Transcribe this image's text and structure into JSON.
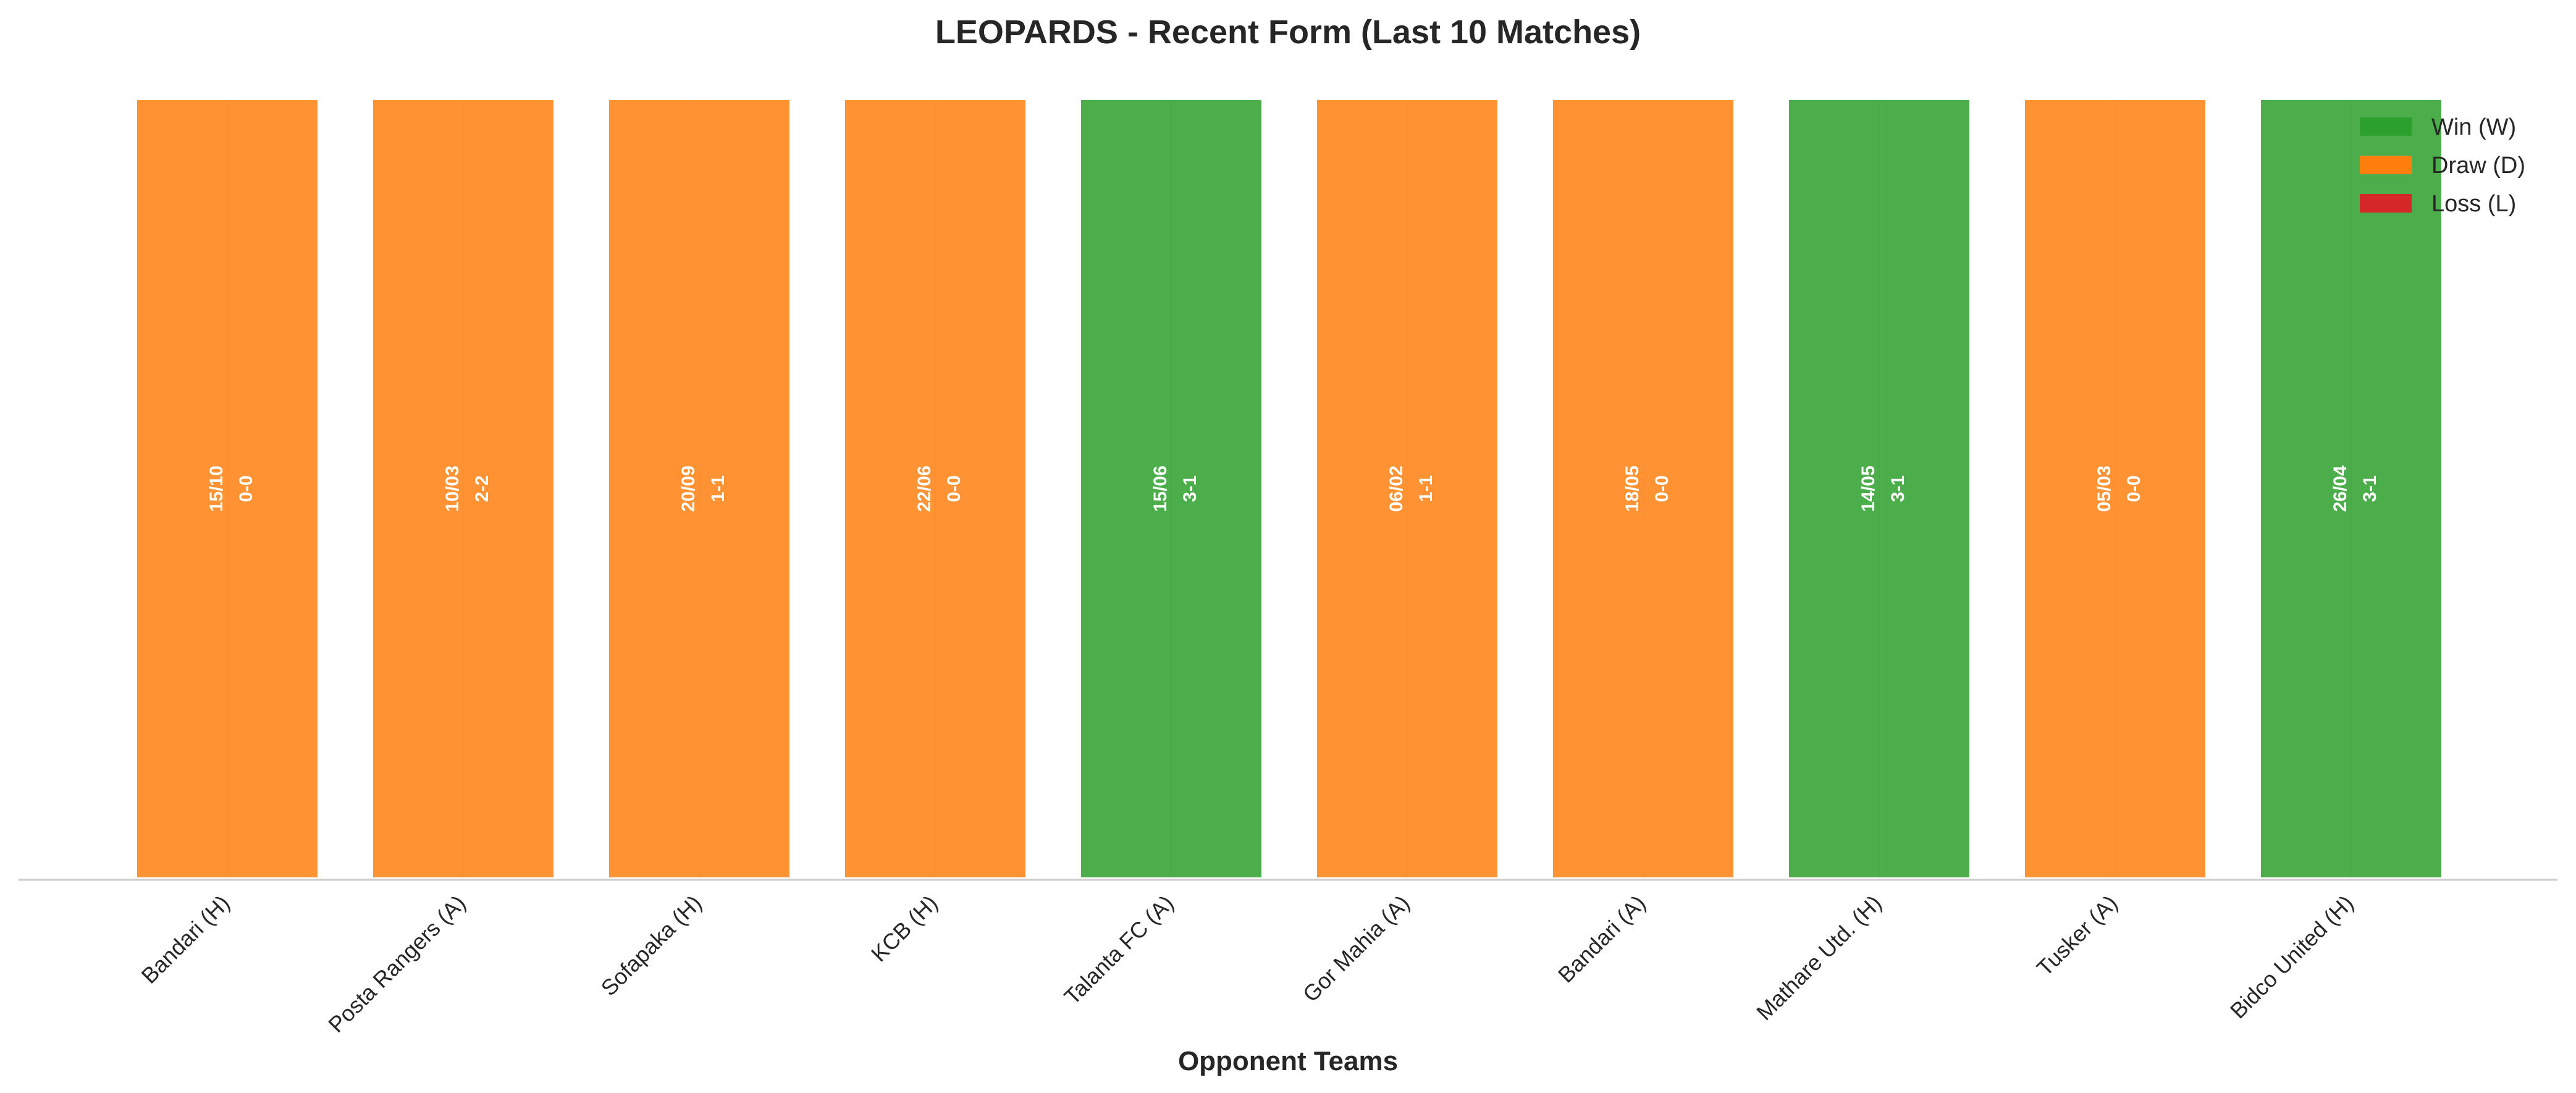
{
  "chart_data": {
    "type": "bar",
    "title": "LEOPARDS - Recent Form (Last 10 Matches)",
    "xlabel": "Opponent Teams",
    "ylabel": "",
    "grid": "vertical dashed lines at bar centers",
    "legend_position": "top-right",
    "categories": [
      "Bandari (H)",
      "Posta Rangers (A)",
      "Sofapaka (H)",
      "KCB (H)",
      "Talanta FC (A)",
      "Gor Mahia (A)",
      "Bandari (A)",
      "Mathare Utd. (H)",
      "Tusker (A)",
      "Bidco United (H)"
    ],
    "values": [
      1,
      1,
      1,
      1,
      1,
      1,
      1,
      1,
      1,
      1
    ],
    "results": [
      "D",
      "D",
      "D",
      "D",
      "W",
      "D",
      "D",
      "W",
      "D",
      "W"
    ],
    "dates": [
      "15/10",
      "10/03",
      "20/09",
      "22/06",
      "15/06",
      "06/02",
      "18/05",
      "14/05",
      "05/03",
      "26/04"
    ],
    "scores": [
      "0-0",
      "2-2",
      "1-1",
      "0-0",
      "3-1",
      "1-1",
      "0-0",
      "3-1",
      "0-0",
      "3-1"
    ],
    "legend": [
      {
        "key": "W",
        "label": "Win (W)",
        "color": "#2ca02c"
      },
      {
        "key": "D",
        "label": "Draw (D)",
        "color": "#ff7f0e"
      },
      {
        "key": "L",
        "label": "Loss (L)",
        "color": "#d62728"
      }
    ],
    "colors": {
      "W": "#2ca02c",
      "D": "#ff7f0e",
      "L": "#d62728"
    }
  }
}
